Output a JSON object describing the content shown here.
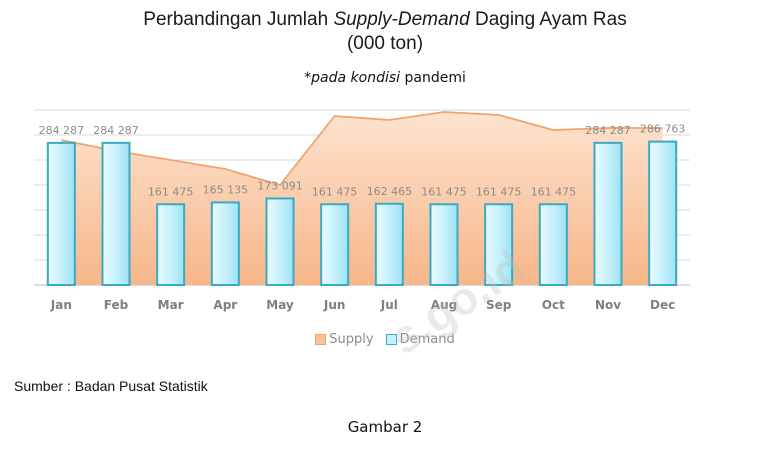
{
  "chart_data": {
    "type": "bar",
    "title": "Perbandingan Jumlah Supply-Demand Daging Ayam Ras",
    "subtitle": "(000 ton)",
    "note": "*pada kondisi pandemi",
    "categories": [
      "Jan",
      "Feb",
      "Mar",
      "Apr",
      "May",
      "Jun",
      "Jul",
      "Aug",
      "Sep",
      "Oct",
      "Nov",
      "Dec"
    ],
    "series": [
      {
        "name": "Supply",
        "kind": "area",
        "color": "#f7b98b",
        "values": [
          290000,
          268000,
          250000,
          232000,
          200000,
          338000,
          330000,
          346000,
          340000,
          310000,
          314000,
          314000
        ]
      },
      {
        "name": "Demand",
        "kind": "bar",
        "color": "#c6f0fb",
        "values": [
          284287,
          284287,
          161475,
          165135,
          173091,
          161475,
          162465,
          161475,
          161475,
          161475,
          284287,
          286763
        ]
      }
    ],
    "data_labels": [
      "284 287",
      "284 287",
      "161 475",
      "165 135",
      "173 091",
      "161 475",
      "162 465",
      "161 475",
      "161 475",
      "161 475",
      "284 287",
      "286 763"
    ],
    "ylim": [
      0,
      350000
    ],
    "grid": true,
    "legend": "bottom"
  },
  "text": {
    "title_plain": "Perbandingan Jumlah ",
    "title_italic": "Supply-Demand",
    "title_rest": " Daging Ayam Ras",
    "subtitle": "(000 ton)",
    "note_prefix": "*",
    "note_italic": "pada kondisi",
    "note_rest": " pandemi",
    "legend_supply": "Supply",
    "legend_demand": "Demand",
    "source": "Sumber : Badan Pusat Statistik",
    "caption": "Gambar 2",
    "watermark": "s.go.id"
  }
}
